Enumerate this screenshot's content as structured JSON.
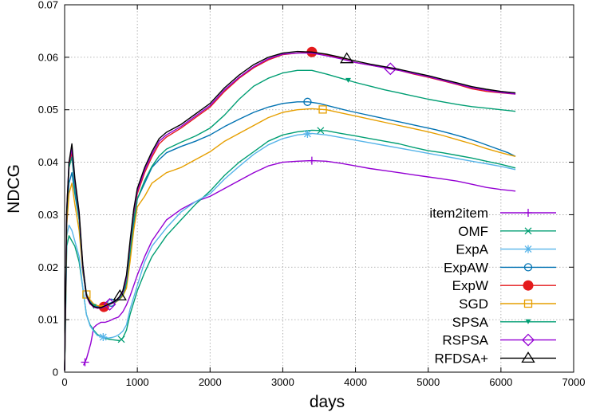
{
  "chart_data": {
    "type": "line",
    "title": "",
    "xlabel": "days",
    "ylabel": "NDCG",
    "xlim": [
      0,
      7000
    ],
    "ylim": [
      0,
      0.07
    ],
    "xticks": [
      0,
      1000,
      2000,
      3000,
      4000,
      5000,
      6000,
      7000
    ],
    "yticks": [
      0,
      0.01,
      0.02,
      0.03,
      0.04,
      0.05,
      0.06,
      0.07
    ],
    "xtick_labels": [
      "0",
      "1000",
      "2000",
      "3000",
      "4000",
      "5000",
      "6000",
      "7000"
    ],
    "ytick_labels": [
      "0",
      "0.01",
      "0.02",
      "0.03",
      "0.04",
      "0.05",
      "0.06",
      "0.07"
    ],
    "grid": true,
    "legend_position": "bottom-right",
    "series": [
      {
        "name": "item2item",
        "color": "#9400d3",
        "marker": "plus",
        "x": [
          260,
          300,
          360,
          400,
          440,
          500,
          560,
          620,
          680,
          740,
          800,
          850,
          900,
          950,
          1000,
          1100,
          1200,
          1400,
          1600,
          1800,
          2000,
          2200,
          2400,
          2600,
          2800,
          3000,
          3200,
          3400,
          3600,
          3800,
          4000,
          4200,
          4400,
          4600,
          4800,
          5000,
          5200,
          5400,
          5600,
          5800,
          6000,
          6200
        ],
        "y": [
          0.0013,
          0.0025,
          0.0055,
          0.0085,
          0.009,
          0.0095,
          0.0095,
          0.0098,
          0.0102,
          0.0105,
          0.0115,
          0.0128,
          0.0145,
          0.0165,
          0.0185,
          0.022,
          0.025,
          0.029,
          0.031,
          0.0325,
          0.0335,
          0.035,
          0.0365,
          0.038,
          0.0393,
          0.04,
          0.0402,
          0.0403,
          0.0402,
          0.0398,
          0.0393,
          0.0388,
          0.0384,
          0.038,
          0.0376,
          0.0372,
          0.0368,
          0.0364,
          0.0358,
          0.0352,
          0.0348,
          0.0345
        ],
        "marker_x": [
          280,
          3400
        ]
      },
      {
        "name": "OMF",
        "color": "#009e73",
        "marker": "cross",
        "x": [
          0,
          30,
          60,
          100,
          140,
          200,
          250,
          300,
          350,
          400,
          450,
          500,
          550,
          600,
          650,
          700,
          760,
          800,
          850,
          900,
          1000,
          1100,
          1200,
          1400,
          1600,
          1800,
          2000,
          2200,
          2400,
          2600,
          2800,
          3000,
          3200,
          3400,
          3600,
          3800,
          4000,
          4200,
          4400,
          4600,
          4800,
          5000,
          5200,
          5400,
          5600,
          5800,
          6000,
          6200
        ],
        "y": [
          0.0003,
          0.024,
          0.026,
          0.025,
          0.024,
          0.021,
          0.016,
          0.011,
          0.009,
          0.008,
          0.0072,
          0.0068,
          0.0065,
          0.0063,
          0.0062,
          0.0061,
          0.006,
          0.0065,
          0.008,
          0.011,
          0.0155,
          0.019,
          0.022,
          0.026,
          0.029,
          0.032,
          0.0345,
          0.0375,
          0.04,
          0.042,
          0.044,
          0.0452,
          0.0458,
          0.0461,
          0.046,
          0.0455,
          0.045,
          0.0445,
          0.044,
          0.0435,
          0.0428,
          0.0422,
          0.0418,
          0.0413,
          0.0408,
          0.0402,
          0.0396,
          0.0389
        ],
        "marker_x": [
          780,
          3520
        ]
      },
      {
        "name": "ExpA",
        "color": "#56b4e9",
        "marker": "star",
        "x": [
          0,
          30,
          60,
          100,
          140,
          200,
          250,
          300,
          350,
          400,
          450,
          500,
          550,
          600,
          650,
          700,
          750,
          800,
          850,
          900,
          1000,
          1100,
          1200,
          1400,
          1600,
          1800,
          2000,
          2200,
          2400,
          2600,
          2800,
          3000,
          3200,
          3400,
          3600,
          3800,
          4000,
          4200,
          4400,
          4600,
          4800,
          5000,
          5200,
          5400,
          5600,
          5800,
          6000,
          6200
        ],
        "y": [
          0.0003,
          0.026,
          0.028,
          0.027,
          0.025,
          0.022,
          0.016,
          0.011,
          0.0088,
          0.0078,
          0.007,
          0.0068,
          0.0066,
          0.0065,
          0.0066,
          0.0068,
          0.0072,
          0.0078,
          0.009,
          0.012,
          0.0165,
          0.021,
          0.024,
          0.0275,
          0.0305,
          0.0325,
          0.034,
          0.0368,
          0.0392,
          0.0415,
          0.0433,
          0.0445,
          0.0452,
          0.0455,
          0.0452,
          0.0447,
          0.0442,
          0.0437,
          0.0432,
          0.0427,
          0.0422,
          0.0417,
          0.0412,
          0.0407,
          0.0402,
          0.0397,
          0.0392,
          0.0386
        ],
        "marker_x": [
          530,
          3340
        ]
      },
      {
        "name": "ExpAW",
        "color": "#0072b2",
        "marker": "circle",
        "x": [
          0,
          30,
          60,
          100,
          140,
          200,
          250,
          300,
          350,
          400,
          450,
          500,
          550,
          600,
          650,
          700,
          750,
          800,
          850,
          900,
          950,
          1000,
          1100,
          1200,
          1300,
          1400,
          1600,
          1800,
          2000,
          2200,
          2400,
          2600,
          2800,
          3000,
          3200,
          3350,
          3500,
          3700,
          3900,
          4100,
          4300,
          4500,
          4700,
          4900,
          5100,
          5300,
          5500,
          5700,
          5900,
          6100,
          6200
        ],
        "y": [
          0.0003,
          0.029,
          0.036,
          0.038,
          0.034,
          0.029,
          0.02,
          0.015,
          0.0135,
          0.0128,
          0.0125,
          0.0125,
          0.0128,
          0.013,
          0.0133,
          0.0135,
          0.014,
          0.0148,
          0.0165,
          0.022,
          0.028,
          0.033,
          0.036,
          0.039,
          0.0405,
          0.0418,
          0.043,
          0.044,
          0.0452,
          0.0468,
          0.0482,
          0.0495,
          0.0505,
          0.0512,
          0.0515,
          0.0515,
          0.0512,
          0.0505,
          0.0498,
          0.0492,
          0.0486,
          0.048,
          0.0474,
          0.0468,
          0.0462,
          0.0455,
          0.0447,
          0.0438,
          0.0428,
          0.0418,
          0.0411
        ],
        "marker_x": [
          640,
          3340
        ]
      },
      {
        "name": "ExpW",
        "color": "#e41a1c",
        "marker": "filled-circle",
        "x": [
          0,
          30,
          60,
          100,
          140,
          200,
          250,
          300,
          350,
          400,
          450,
          500,
          550,
          600,
          650,
          700,
          750,
          800,
          850,
          900,
          950,
          1000,
          1100,
          1200,
          1300,
          1400,
          1600,
          1800,
          2000,
          2200,
          2400,
          2600,
          2800,
          3000,
          3200,
          3400,
          3600,
          3800,
          4000,
          4200,
          4400,
          4600,
          4800,
          5000,
          5200,
          5400,
          5600,
          5800,
          6000,
          6200
        ],
        "y": [
          0.0003,
          0.03,
          0.039,
          0.042,
          0.036,
          0.03,
          0.02,
          0.0145,
          0.013,
          0.0124,
          0.0122,
          0.0122,
          0.0125,
          0.0128,
          0.0131,
          0.0134,
          0.014,
          0.015,
          0.0175,
          0.024,
          0.03,
          0.034,
          0.038,
          0.041,
          0.0435,
          0.0448,
          0.0465,
          0.0485,
          0.0505,
          0.0535,
          0.056,
          0.058,
          0.0595,
          0.0605,
          0.0608,
          0.061,
          0.0605,
          0.0598,
          0.059,
          0.0585,
          0.058,
          0.0575,
          0.0568,
          0.0562,
          0.0555,
          0.0548,
          0.054,
          0.0535,
          0.0532,
          0.053
        ],
        "marker_x": [
          540,
          3400
        ]
      },
      {
        "name": "SGD",
        "color": "#e69f00",
        "marker": "square",
        "x": [
          0,
          30,
          60,
          100,
          140,
          200,
          250,
          300,
          350,
          400,
          450,
          500,
          550,
          600,
          650,
          700,
          750,
          800,
          850,
          900,
          950,
          1000,
          1100,
          1200,
          1300,
          1400,
          1500,
          1600,
          1800,
          2000,
          2200,
          2400,
          2600,
          2800,
          3000,
          3200,
          3400,
          3600,
          3800,
          4000,
          4200,
          4400,
          4600,
          4800,
          5000,
          5200,
          5400,
          5600,
          5800,
          6000,
          6200
        ],
        "y": [
          0.0003,
          0.028,
          0.034,
          0.036,
          0.032,
          0.027,
          0.019,
          0.0148,
          0.0138,
          0.013,
          0.0127,
          0.0126,
          0.0127,
          0.0129,
          0.0131,
          0.0133,
          0.0138,
          0.0145,
          0.016,
          0.021,
          0.027,
          0.0315,
          0.0335,
          0.036,
          0.037,
          0.038,
          0.0385,
          0.039,
          0.0405,
          0.042,
          0.044,
          0.0455,
          0.047,
          0.0485,
          0.0495,
          0.05,
          0.0502,
          0.05,
          0.0494,
          0.0488,
          0.0482,
          0.0476,
          0.047,
          0.0464,
          0.0458,
          0.0451,
          0.0443,
          0.0435,
          0.0426,
          0.0418,
          0.0411
        ],
        "marker_x": [
          300,
          3550
        ]
      },
      {
        "name": "SPSA",
        "color": "#009e73",
        "marker": "filled-triangle-down",
        "x": [
          0,
          30,
          60,
          100,
          140,
          200,
          250,
          300,
          350,
          400,
          450,
          500,
          550,
          600,
          650,
          700,
          750,
          800,
          850,
          900,
          950,
          1000,
          1100,
          1200,
          1300,
          1400,
          1600,
          1800,
          2000,
          2200,
          2400,
          2600,
          2800,
          3000,
          3200,
          3400,
          3600,
          3800,
          4000,
          4200,
          4400,
          4600,
          4800,
          5000,
          5200,
          5400,
          5600,
          5800,
          6000,
          6200
        ],
        "y": [
          0.0003,
          0.03,
          0.039,
          0.041,
          0.035,
          0.029,
          0.0195,
          0.0143,
          0.0132,
          0.0125,
          0.0122,
          0.0122,
          0.0125,
          0.0128,
          0.0131,
          0.0134,
          0.0139,
          0.0148,
          0.017,
          0.023,
          0.029,
          0.033,
          0.0365,
          0.0392,
          0.0412,
          0.0425,
          0.0438,
          0.045,
          0.0465,
          0.049,
          0.052,
          0.0545,
          0.056,
          0.057,
          0.0575,
          0.0575,
          0.0568,
          0.056,
          0.0552,
          0.0545,
          0.0538,
          0.0532,
          0.0526,
          0.052,
          0.0515,
          0.051,
          0.0506,
          0.0503,
          0.05,
          0.0497
        ],
        "marker_x": [
          400,
          3900
        ]
      },
      {
        "name": "RSPSA",
        "color": "#9400d3",
        "marker": "diamond",
        "x": [
          0,
          30,
          60,
          100,
          140,
          200,
          250,
          300,
          350,
          400,
          450,
          500,
          550,
          600,
          650,
          700,
          750,
          800,
          850,
          900,
          950,
          1000,
          1100,
          1200,
          1300,
          1400,
          1600,
          1800,
          2000,
          2200,
          2400,
          2600,
          2800,
          3000,
          3200,
          3400,
          3600,
          3800,
          4000,
          4200,
          4400,
          4600,
          4800,
          5000,
          5200,
          5400,
          5600,
          5800,
          6000,
          6200
        ],
        "y": [
          0.0003,
          0.031,
          0.04,
          0.0425,
          0.0365,
          0.03,
          0.02,
          0.0145,
          0.013,
          0.0124,
          0.0122,
          0.0122,
          0.0125,
          0.0128,
          0.0131,
          0.0135,
          0.0142,
          0.0152,
          0.018,
          0.0245,
          0.0305,
          0.0345,
          0.0385,
          0.0415,
          0.044,
          0.0452,
          0.0468,
          0.0488,
          0.0508,
          0.0538,
          0.0562,
          0.0582,
          0.0597,
          0.0606,
          0.0608,
          0.0608,
          0.0603,
          0.0597,
          0.059,
          0.0585,
          0.058,
          0.0575,
          0.0569,
          0.0563,
          0.0556,
          0.0549,
          0.0542,
          0.0537,
          0.0533,
          0.053
        ],
        "marker_x": [
          620,
          4480
        ]
      },
      {
        "name": "RFDSA+",
        "color": "#000000",
        "marker": "triangle",
        "x": [
          0,
          30,
          60,
          100,
          140,
          200,
          250,
          300,
          350,
          400,
          450,
          500,
          550,
          600,
          650,
          700,
          750,
          800,
          850,
          900,
          950,
          1000,
          1100,
          1200,
          1300,
          1400,
          1600,
          1800,
          2000,
          2200,
          2400,
          2600,
          2800,
          3000,
          3200,
          3400,
          3600,
          3800,
          4000,
          4200,
          4400,
          4600,
          4800,
          5000,
          5200,
          5400,
          5600,
          5800,
          6000,
          6200
        ],
        "y": [
          0.0003,
          0.031,
          0.04,
          0.0435,
          0.037,
          0.0305,
          0.0205,
          0.0147,
          0.0132,
          0.0125,
          0.0123,
          0.0123,
          0.0126,
          0.0129,
          0.0132,
          0.0136,
          0.0143,
          0.0155,
          0.0185,
          0.025,
          0.031,
          0.035,
          0.039,
          0.042,
          0.0445,
          0.0457,
          0.0472,
          0.0492,
          0.0512,
          0.0542,
          0.0566,
          0.0586,
          0.06,
          0.0608,
          0.0611,
          0.061,
          0.0606,
          0.06,
          0.0593,
          0.0587,
          0.0582,
          0.0577,
          0.0571,
          0.0565,
          0.0558,
          0.0551,
          0.0544,
          0.0539,
          0.0535,
          0.0532
        ],
        "marker_x": [
          760,
          3880
        ]
      }
    ]
  }
}
